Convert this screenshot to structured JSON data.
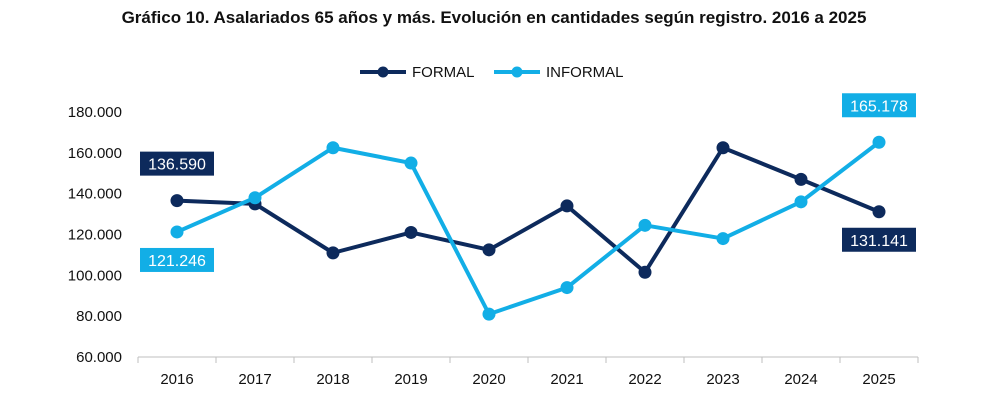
{
  "chart_data": {
    "type": "line",
    "title": "Gráfico 10. Asalariados 65 años y más. Evolución en cantidades según registro. 2016 a 2025",
    "xlabel": "",
    "ylabel": "",
    "categories": [
      "2016",
      "2017",
      "2018",
      "2019",
      "2020",
      "2021",
      "2022",
      "2023",
      "2024",
      "2025"
    ],
    "y_ticks": [
      "60.000",
      "80.000",
      "100.000",
      "120.000",
      "140.000",
      "160.000",
      "180.000"
    ],
    "ylim": [
      60000,
      180000
    ],
    "legend_position": "top-center",
    "grid": false,
    "series": [
      {
        "name": "FORMAL",
        "color": "#0d2a5c",
        "values": [
          136590,
          135000,
          111000,
          121000,
          112500,
          134000,
          101500,
          162500,
          147000,
          131141
        ]
      },
      {
        "name": "INFORMAL",
        "color": "#12aee6",
        "values": [
          121246,
          138000,
          162500,
          155000,
          81000,
          94000,
          124500,
          118000,
          136000,
          165178
        ]
      }
    ],
    "data_labels": [
      {
        "series": 0,
        "index": 0,
        "text": "136.590",
        "placement": "above"
      },
      {
        "series": 1,
        "index": 0,
        "text": "121.246",
        "placement": "below"
      },
      {
        "series": 1,
        "index": 9,
        "text": "165.178",
        "placement": "above"
      },
      {
        "series": 0,
        "index": 9,
        "text": "131.141",
        "placement": "below"
      }
    ]
  }
}
